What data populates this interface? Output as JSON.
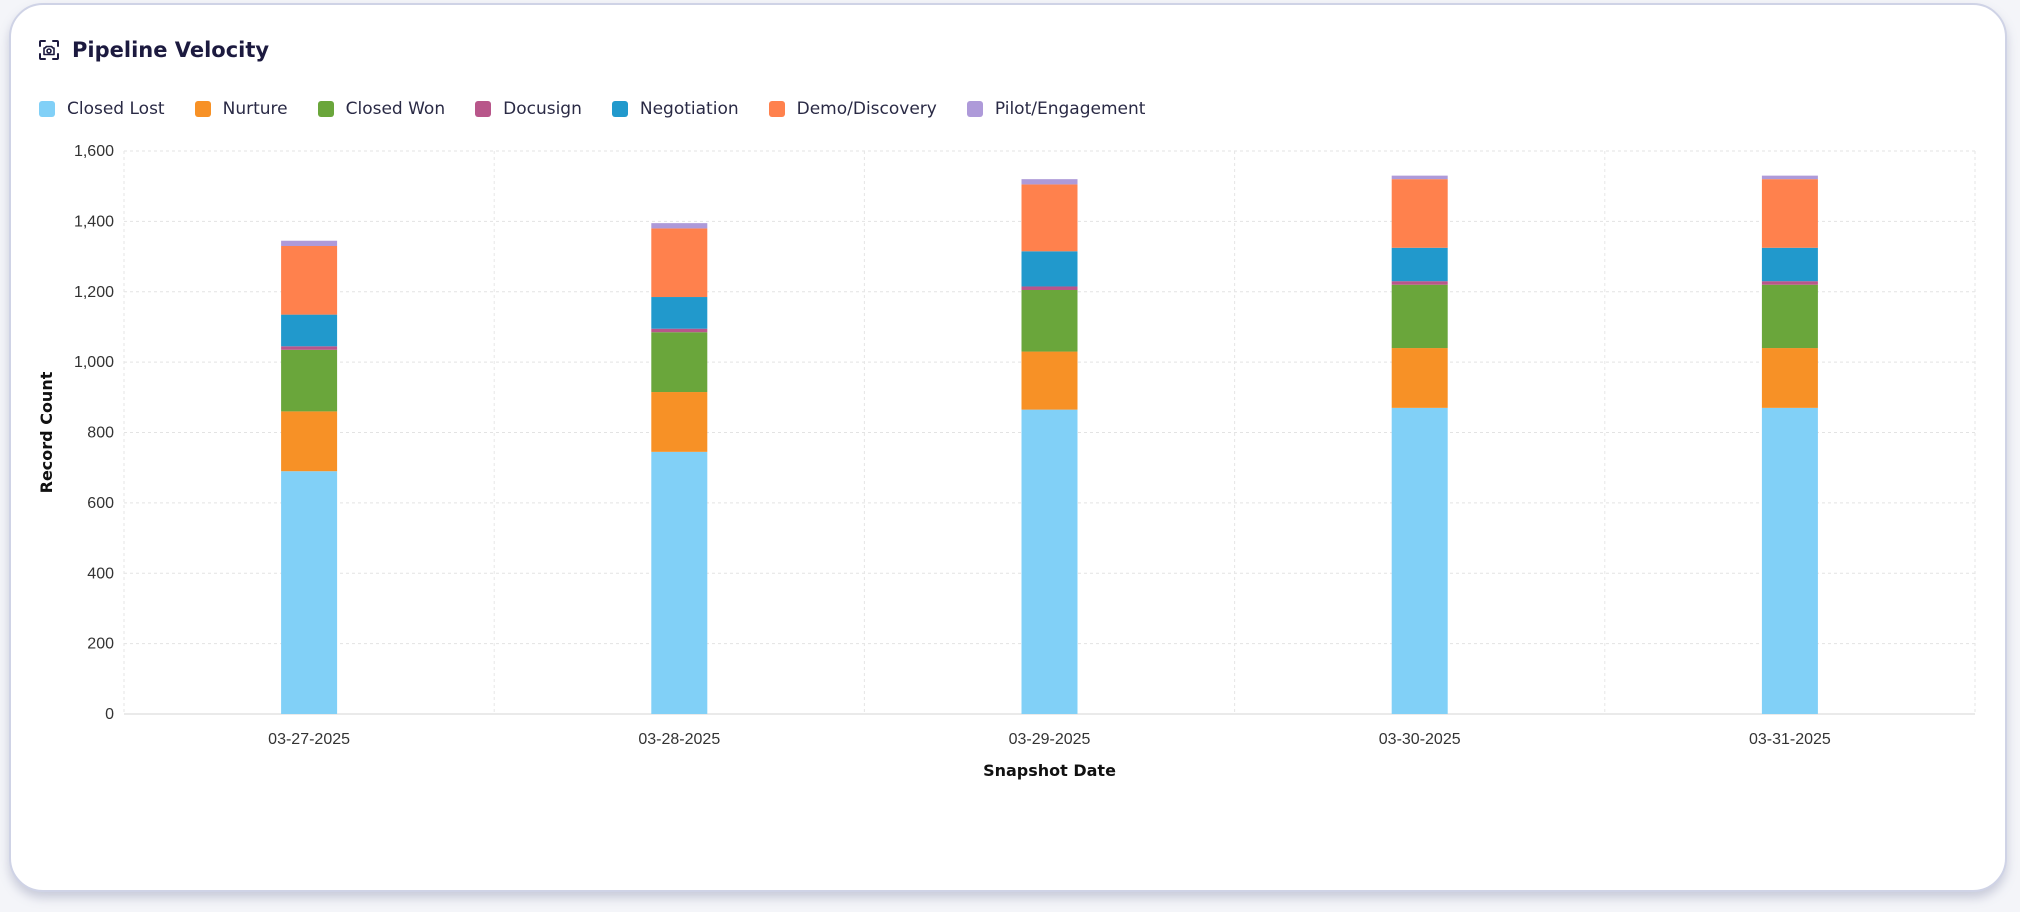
{
  "header": {
    "title": "Pipeline Velocity",
    "icon": "focus-scan-icon"
  },
  "colors": {
    "Closed Lost": "#81d0f7",
    "Nurture": "#f79126",
    "Closed Won": "#6aa63b",
    "Docusign": "#b8568a",
    "Negotiation": "#2199cc",
    "Demo/Discovery": "#ff814d",
    "Pilot/Engagement": "#ae9ad9"
  },
  "chart_data": {
    "type": "bar",
    "stacked": true,
    "title": "",
    "xlabel": "Snapshot Date",
    "ylabel": "Record Count",
    "ylim": [
      0,
      1600
    ],
    "yticks": [
      0,
      200,
      400,
      600,
      800,
      1000,
      1200,
      1400,
      1600
    ],
    "ytick_labels": [
      "0",
      "200",
      "400",
      "600",
      "800",
      "1,000",
      "1,200",
      "1,400",
      "1,600"
    ],
    "grid": true,
    "legend_position": "top-left",
    "categories": [
      "03-27-2025",
      "03-28-2025",
      "03-29-2025",
      "03-30-2025",
      "03-31-2025"
    ],
    "series": [
      {
        "name": "Closed Lost",
        "values": [
          690,
          745,
          865,
          870,
          870
        ]
      },
      {
        "name": "Nurture",
        "values": [
          170,
          170,
          165,
          170,
          170
        ]
      },
      {
        "name": "Closed Won",
        "values": [
          175,
          170,
          175,
          180,
          180
        ]
      },
      {
        "name": "Docusign",
        "values": [
          10,
          10,
          10,
          10,
          10
        ]
      },
      {
        "name": "Negotiation",
        "values": [
          90,
          90,
          100,
          95,
          95
        ]
      },
      {
        "name": "Demo/Discovery",
        "values": [
          195,
          195,
          190,
          195,
          195
        ]
      },
      {
        "name": "Pilot/Engagement",
        "values": [
          15,
          15,
          15,
          10,
          10
        ]
      }
    ]
  }
}
